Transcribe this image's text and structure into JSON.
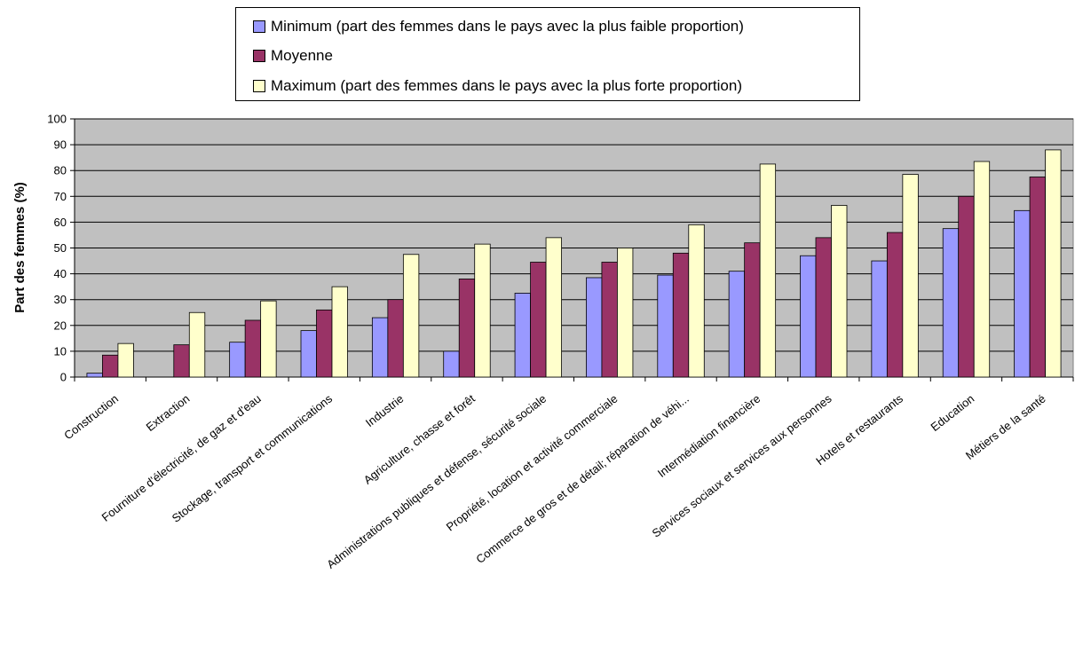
{
  "chart_data": {
    "type": "bar",
    "ylabel": "Part des femmes (%)",
    "xlabel": "",
    "ylim": [
      0,
      100
    ],
    "yticks": [
      0,
      10,
      20,
      30,
      40,
      50,
      60,
      70,
      80,
      90,
      100
    ],
    "grid": true,
    "legend_position": "top-center",
    "categories": [
      "Construction",
      "Extraction",
      "Fourniture d'électricité, de gaz et d'eau",
      "Stockage, transport et communications",
      "Industrie",
      "Agriculture, chasse et forêt",
      "Administrations publiques et défense, sécurité sociale",
      "Propriété, location et activité commerciale",
      "Commerce de gros et de détail; réparation de véhi...",
      "Intermédiation financière",
      "Services sociaux et services aux personnes",
      "Hotels et restaurants",
      "Education",
      "Métiers de la santé"
    ],
    "series": [
      {
        "name": "Minimum (part des femmes dans le pays avec la plus faible proportion)",
        "color": "#9999ff",
        "values": [
          1.5,
          0,
          13.5,
          18,
          23,
          10,
          32.5,
          38.5,
          39.5,
          41,
          47,
          45,
          57.5,
          64.5
        ]
      },
      {
        "name": "Moyenne",
        "color": "#993366",
        "values": [
          8.5,
          12.5,
          22,
          26,
          30,
          38,
          44.5,
          44.5,
          48,
          52,
          54,
          56,
          70,
          77.5
        ]
      },
      {
        "name": "Maximum (part des femmes dans le pays avec la plus forte proportion)",
        "color": "#ffffcc",
        "values": [
          13,
          25,
          29.5,
          35,
          47.5,
          51.5,
          54,
          50,
          59,
          82.5,
          66.5,
          78.5,
          83.5,
          88
        ]
      }
    ],
    "plot_background": "#c0c0c0"
  }
}
